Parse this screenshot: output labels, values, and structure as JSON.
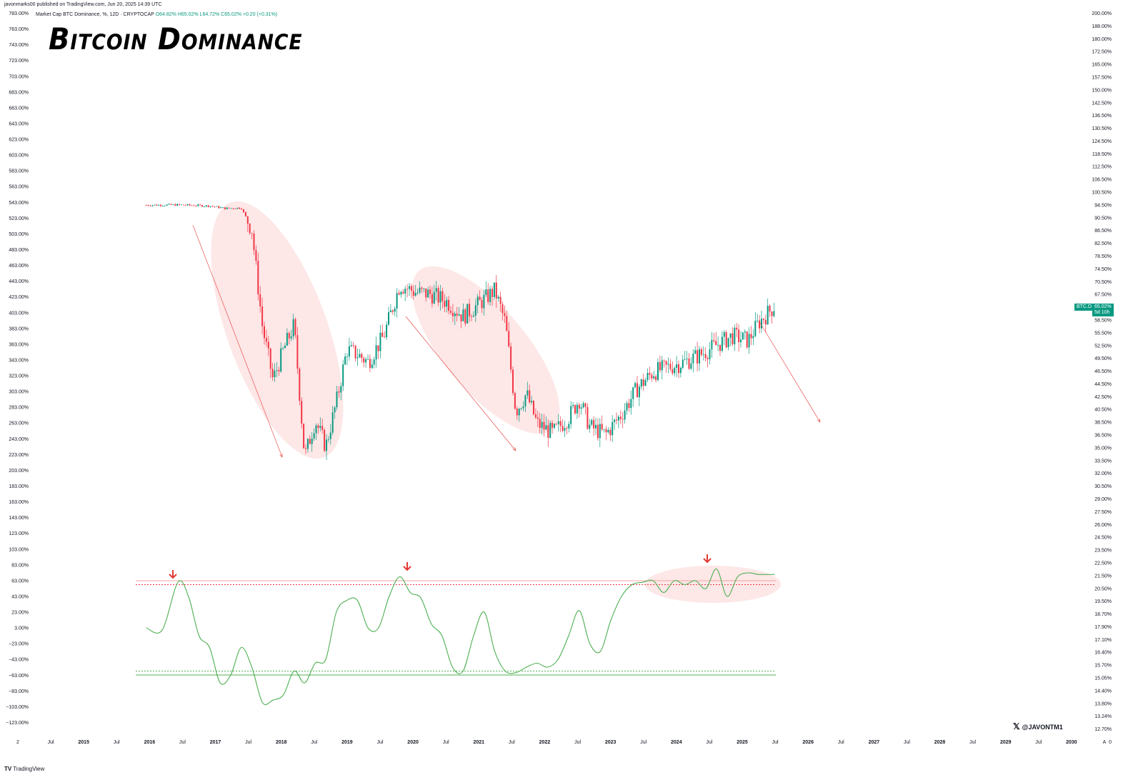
{
  "header": {
    "publisher": "javonmarks00 published on TradingView.com, Jun 20, 2025 14:39 UTC",
    "symbol_line": "Market Cap BTC Dominance, %, 12D · CRYPTOCAP",
    "ohlc": "O64.82% H65.02% L64.72% C65.02% +0.20 (+0.31%)",
    "title": "Bitcoin Dominance"
  },
  "footer": {
    "brand_logo": "TV",
    "brand": "TradingView",
    "handle_icon": "x-logo-icon",
    "handle": "@JAVONTM1"
  },
  "price_tag": {
    "symbol": "BTC.D",
    "value": "65.02%",
    "countdown": "5d 10h"
  },
  "colors": {
    "up": "#089981",
    "down": "#f23645",
    "osc": "#4caf50",
    "highlight": "#fde3e3",
    "arrow": "#e53935"
  },
  "chart_data": [
    {
      "type": "candlestick",
      "title": "Market Cap BTC Dominance, %, 12D",
      "right_axis_ticks": [
        "200.00%",
        "188.00%",
        "180.00%",
        "172.50%",
        "165.00%",
        "157.50%",
        "150.00%",
        "142.50%",
        "136.50%",
        "130.50%",
        "124.50%",
        "118.50%",
        "112.50%",
        "106.50%",
        "100.50%",
        "94.50%",
        "90.50%",
        "86.50%",
        "82.50%",
        "78.50%",
        "74.50%",
        "70.50%",
        "67.50%",
        "61.50%",
        "58.50%",
        "55.50%",
        "52.50%",
        "49.50%",
        "46.50%",
        "44.50%",
        "42.50%",
        "40.50%",
        "38.50%",
        "36.50%",
        "35.00%",
        "33.50%",
        "32.00%",
        "30.50%",
        "29.00%",
        "27.50%",
        "26.00%",
        "24.50%",
        "23.50%",
        "22.50%",
        "21.50%",
        "20.50%",
        "19.50%",
        "18.70%",
        "17.90%",
        "17.10%",
        "16.40%",
        "15.70%",
        "15.05%",
        "14.40%",
        "13.80%",
        "13.24%",
        "12.70%",
        "0"
      ],
      "x_ticks": [
        "2",
        "Jul",
        "2015",
        "Jul",
        "2016",
        "Jul",
        "2017",
        "Jul",
        "2018",
        "Jul",
        "2019",
        "Jul",
        "2020",
        "Jul",
        "2021",
        "Jul",
        "2022",
        "Jul",
        "2023",
        "Jul",
        "2024",
        "Jul",
        "2025",
        "Jul",
        "2026",
        "Jul",
        "2027",
        "Jul",
        "2028",
        "Jul",
        "2029",
        "Jul",
        "2030",
        "A"
      ],
      "close_path": [
        [
          "2015-07",
          95.5
        ],
        [
          "2016-01",
          95.6
        ],
        [
          "2016-07",
          95.2
        ],
        [
          "2016-10",
          94.3
        ],
        [
          "2017-01",
          94.5
        ],
        [
          "2017-03",
          87.0
        ],
        [
          "2017-05",
          60.0
        ],
        [
          "2017-07",
          49.0
        ],
        [
          "2017-09",
          55.0
        ],
        [
          "2017-11",
          60.5
        ],
        [
          "2018-01",
          36.5
        ],
        [
          "2018-03",
          42.0
        ],
        [
          "2018-05",
          38.0
        ],
        [
          "2018-07",
          45.0
        ],
        [
          "2018-09",
          55.0
        ],
        [
          "2018-11",
          54.0
        ],
        [
          "2019-01",
          52.5
        ],
        [
          "2019-04",
          58.0
        ],
        [
          "2019-07",
          70.5
        ],
        [
          "2019-10",
          68.5
        ],
        [
          "2020-01",
          68.0
        ],
        [
          "2020-04",
          66.0
        ],
        [
          "2020-07",
          62.5
        ],
        [
          "2020-10",
          65.5
        ],
        [
          "2021-01",
          69.0
        ],
        [
          "2021-03",
          61.0
        ],
        [
          "2021-05",
          43.5
        ],
        [
          "2021-07",
          46.5
        ],
        [
          "2021-09",
          41.5
        ],
        [
          "2021-12",
          40.0
        ],
        [
          "2022-03",
          42.5
        ],
        [
          "2022-05",
          45.5
        ],
        [
          "2022-07",
          41.0
        ],
        [
          "2022-10",
          39.8
        ],
        [
          "2023-01",
          43.0
        ],
        [
          "2023-04",
          47.5
        ],
        [
          "2023-07",
          50.5
        ],
        [
          "2023-10",
          51.5
        ],
        [
          "2024-01",
          52.5
        ],
        [
          "2024-04",
          54.0
        ],
        [
          "2024-07",
          56.0
        ],
        [
          "2024-10",
          58.0
        ],
        [
          "2025-01",
          57.0
        ],
        [
          "2025-03",
          61.0
        ],
        [
          "2025-06",
          65.02
        ]
      ],
      "last_value": 65.02
    },
    {
      "type": "line",
      "left_axis_ticks": [
        "783.00%",
        "763.00%",
        "743.00%",
        "723.00%",
        "703.00%",
        "683.00%",
        "663.00%",
        "643.00%",
        "623.00%",
        "603.00%",
        "583.00%",
        "563.00%",
        "543.00%",
        "523.00%",
        "503.00%",
        "483.00%",
        "463.00%",
        "443.00%",
        "423.00%",
        "403.00%",
        "383.00%",
        "363.00%",
        "343.00%",
        "323.00%",
        "303.00%",
        "283.00%",
        "263.00%",
        "243.00%",
        "223.00%",
        "203.00%",
        "183.00%",
        "163.00%",
        "143.00%",
        "123.00%",
        "103.00%",
        "83.00%",
        "63.00%",
        "43.00%",
        "23.00%",
        "3.00%",
        "−23.00%",
        "−43.00%",
        "−63.00%",
        "−83.00%",
        "−103.00%",
        "−123.00%"
      ],
      "oscillator": [
        [
          "2015-07",
          0
        ],
        [
          "2015-10",
          -3
        ],
        [
          "2016-01",
          58
        ],
        [
          "2016-03",
          40
        ],
        [
          "2016-05",
          -10
        ],
        [
          "2016-07",
          -25
        ],
        [
          "2016-09",
          -70
        ],
        [
          "2016-11",
          -60
        ],
        [
          "2017-01",
          -25
        ],
        [
          "2017-03",
          -50
        ],
        [
          "2017-05",
          -95
        ],
        [
          "2017-07",
          -92
        ],
        [
          "2017-09",
          -85
        ],
        [
          "2017-11",
          -55
        ],
        [
          "2018-01",
          -70
        ],
        [
          "2018-03",
          -45
        ],
        [
          "2018-05",
          -40
        ],
        [
          "2018-07",
          20
        ],
        [
          "2018-09",
          35
        ],
        [
          "2018-11",
          35
        ],
        [
          "2019-01",
          0
        ],
        [
          "2019-03",
          0
        ],
        [
          "2019-05",
          40
        ],
        [
          "2019-07",
          65
        ],
        [
          "2019-09",
          45
        ],
        [
          "2019-11",
          38
        ],
        [
          "2020-01",
          5
        ],
        [
          "2020-03",
          -10
        ],
        [
          "2020-05",
          -50
        ],
        [
          "2020-07",
          -55
        ],
        [
          "2020-09",
          -10
        ],
        [
          "2020-11",
          20
        ],
        [
          "2021-01",
          -30
        ],
        [
          "2021-03",
          -55
        ],
        [
          "2021-05",
          -57
        ],
        [
          "2021-07",
          -50
        ],
        [
          "2021-09",
          -45
        ],
        [
          "2021-11",
          -50
        ],
        [
          "2022-01",
          -40
        ],
        [
          "2022-03",
          -10
        ],
        [
          "2022-05",
          22
        ],
        [
          "2022-07",
          -20
        ],
        [
          "2022-09",
          -30
        ],
        [
          "2022-11",
          10
        ],
        [
          "2023-01",
          40
        ],
        [
          "2023-03",
          55
        ],
        [
          "2023-05",
          58
        ],
        [
          "2023-07",
          60
        ],
        [
          "2023-09",
          45
        ],
        [
          "2023-11",
          60
        ],
        [
          "2024-01",
          55
        ],
        [
          "2024-03",
          60
        ],
        [
          "2024-05",
          50
        ],
        [
          "2024-07",
          75
        ],
        [
          "2024-09",
          40
        ],
        [
          "2024-11",
          65
        ],
        [
          "2025-01",
          70
        ],
        [
          "2025-03",
          68
        ],
        [
          "2025-06",
          68
        ]
      ],
      "levels": [
        60,
        55,
        -55,
        -60
      ]
    }
  ]
}
